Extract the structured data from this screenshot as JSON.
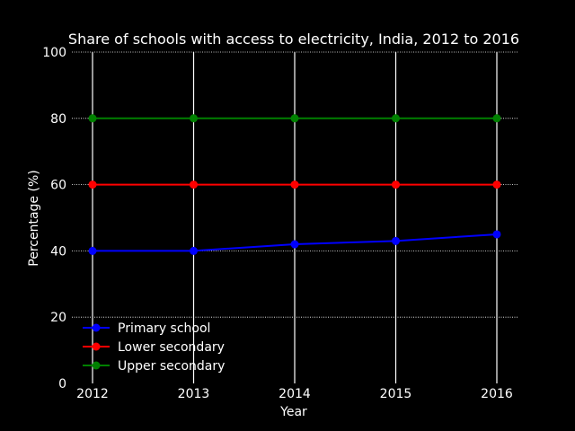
{
  "chart_data": {
    "type": "line",
    "title": "Share of schools with access to electricity, India, 2012 to 2016",
    "xlabel": "Year",
    "ylabel": "Percentage (%)",
    "x": [
      2012,
      2013,
      2014,
      2015,
      2016
    ],
    "x_tick_labels": [
      "2012",
      "2013",
      "2014",
      "2015",
      "2016"
    ],
    "ylim": [
      0,
      100
    ],
    "y_ticks": [
      0,
      20,
      40,
      60,
      80,
      100
    ],
    "y_tick_labels": [
      "0",
      "20",
      "40",
      "60",
      "80",
      "100"
    ],
    "grid": true,
    "legend_position": "bottom-left",
    "series": [
      {
        "name": "Primary school",
        "color": "#0000ff",
        "values": [
          40,
          40,
          42,
          43,
          45
        ]
      },
      {
        "name": "Lower secondary",
        "color": "#ff0000",
        "values": [
          60,
          60,
          60,
          60,
          60
        ]
      },
      {
        "name": "Upper secondary",
        "color": "#008000",
        "values": [
          80,
          80,
          80,
          80,
          80
        ]
      }
    ]
  }
}
